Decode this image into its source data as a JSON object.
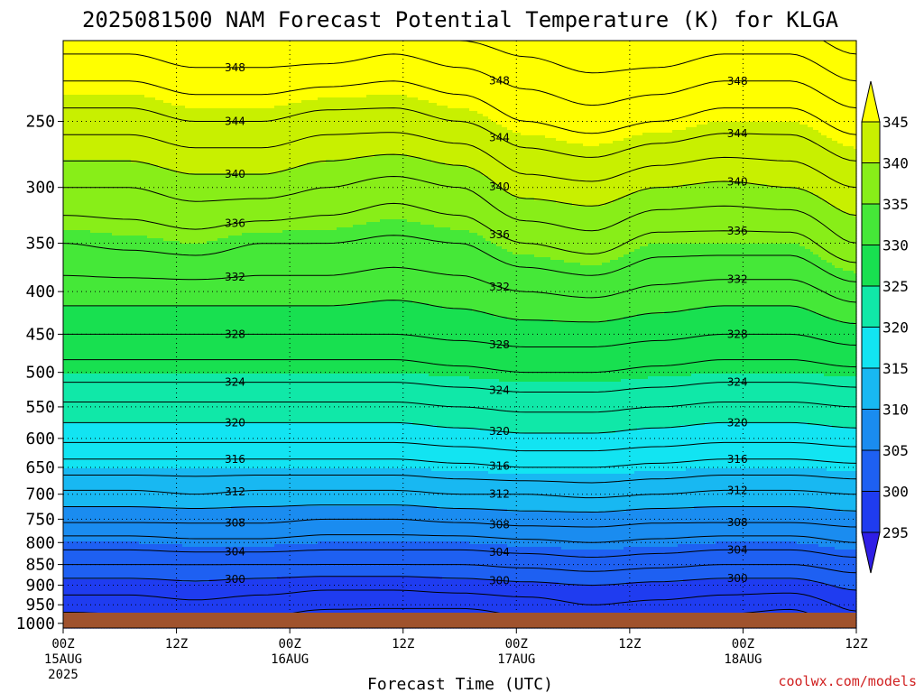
{
  "chart_data": {
    "type": "heatmap",
    "title": "2025081500 NAM Forecast Potential Temperature (K) for KLGA",
    "xlabel": "Forecast Time (UTC)",
    "ylabel": "",
    "credit": "coolwx.com/models",
    "x_ticks": [
      {
        "hour": 0,
        "lines": [
          "00Z",
          "15AUG",
          "2025"
        ]
      },
      {
        "hour": 12,
        "lines": [
          "12Z"
        ]
      },
      {
        "hour": 24,
        "lines": [
          "00Z",
          "16AUG"
        ]
      },
      {
        "hour": 36,
        "lines": [
          "12Z"
        ]
      },
      {
        "hour": 48,
        "lines": [
          "00Z",
          "17AUG"
        ]
      },
      {
        "hour": 60,
        "lines": [
          "12Z"
        ]
      },
      {
        "hour": 72,
        "lines": [
          "00Z",
          "18AUG"
        ]
      },
      {
        "hour": 84,
        "lines": [
          "12Z"
        ]
      }
    ],
    "xlim": [
      0,
      84
    ],
    "y_ticks": [
      250,
      300,
      350,
      400,
      450,
      500,
      550,
      600,
      650,
      700,
      750,
      800,
      850,
      900,
      950,
      1000
    ],
    "ylim": [
      1013,
      200
    ],
    "y_scale": "log",
    "grid": true,
    "colorbar": {
      "levels": [
        295,
        300,
        305,
        310,
        315,
        320,
        325,
        330,
        335,
        340,
        345
      ],
      "colors": [
        "#2f1ee6",
        "#1f3cf0",
        "#1e60f2",
        "#1a8cf0",
        "#18b8f2",
        "#12e4f2",
        "#10e8a8",
        "#18e050",
        "#45e838",
        "#88ee18",
        "#c8f000",
        "#ffff00"
      ]
    },
    "profile_pressure": [
      1013,
      1000,
      950,
      900,
      850,
      800,
      750,
      700,
      650,
      600,
      550,
      500,
      450,
      400,
      350,
      300,
      250,
      200
    ],
    "profile_theta": [
      [
        293.5,
        294.5,
        297,
        299,
        302,
        305,
        308.5,
        311.5,
        315,
        318.5,
        321.5,
        325,
        328,
        331,
        334,
        338,
        343,
        349
      ],
      [
        294.5,
        295,
        297,
        299,
        302,
        305,
        308.5,
        311.5,
        315,
        318.5,
        321.5,
        325,
        328,
        331,
        334.5,
        338,
        343,
        349
      ],
      [
        295.5,
        296,
        297.5,
        299.5,
        302,
        305.5,
        308.5,
        312,
        315,
        318.5,
        321.5,
        325,
        328,
        331,
        335,
        339,
        344,
        350
      ],
      [
        295,
        295.5,
        297,
        299,
        302,
        305.5,
        308.5,
        311.5,
        315,
        318.5,
        321.5,
        325,
        328,
        331,
        334,
        339,
        344,
        350
      ],
      [
        294,
        294.5,
        296.5,
        298.5,
        302,
        305,
        308,
        311.5,
        315,
        318.5,
        321.5,
        325,
        328,
        331,
        334,
        338,
        343,
        350
      ],
      [
        293.5,
        294,
        296.5,
        298.5,
        302,
        305,
        308,
        311.5,
        315,
        318.5,
        321.5,
        325,
        328,
        330.5,
        333.5,
        337,
        343,
        349
      ],
      [
        293.5,
        294,
        296.5,
        299,
        302,
        305,
        308.5,
        312,
        315.5,
        319,
        322,
        325.5,
        328.5,
        331,
        334,
        338,
        344,
        350
      ],
      [
        295,
        295.5,
        297,
        299.5,
        302.5,
        305.5,
        309,
        312,
        316,
        319.5,
        322.5,
        326,
        329,
        332,
        336,
        341,
        346,
        351
      ],
      [
        296,
        296.5,
        298,
        300,
        303,
        306,
        309,
        312.5,
        316,
        319.5,
        322.5,
        326,
        329,
        332.5,
        337,
        341.5,
        347,
        352
      ],
      [
        295.5,
        296,
        297.5,
        299.5,
        302.5,
        305.5,
        308.5,
        312,
        315.5,
        319,
        322,
        325.5,
        328.5,
        331.5,
        335,
        340,
        346,
        352
      ],
      [
        294.5,
        295,
        297,
        299,
        302,
        305,
        308.5,
        311.5,
        315,
        318.5,
        321.5,
        325,
        328,
        331,
        335,
        339.5,
        345,
        351
      ],
      [
        294,
        294.5,
        296.5,
        299,
        302,
        305,
        308.5,
        311.5,
        315,
        318.5,
        321.5,
        325,
        328,
        331,
        335,
        340,
        345,
        351
      ],
      [
        296.5,
        297,
        298.5,
        300.5,
        303,
        306,
        309,
        312,
        315.5,
        319,
        322,
        325.5,
        329,
        333,
        338,
        342,
        347,
        353
      ]
    ]
  }
}
